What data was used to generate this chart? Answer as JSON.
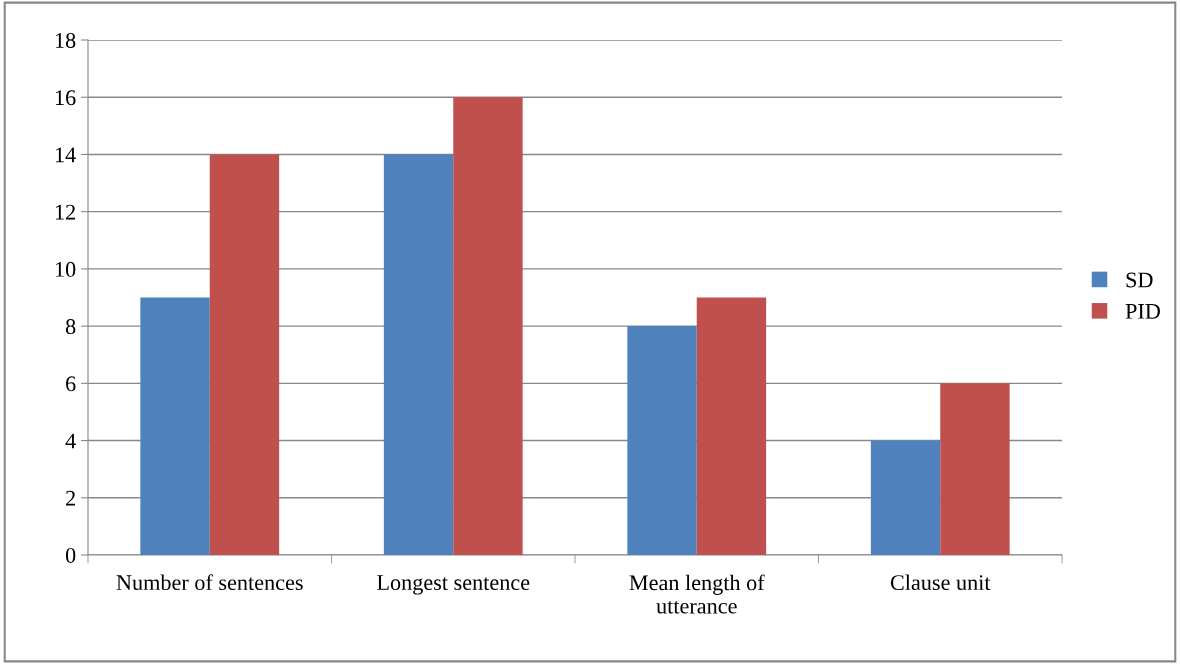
{
  "chart_data": {
    "type": "bar",
    "categories": [
      "Number of sentences",
      "Longest sentence",
      "Mean length of\nutterance",
      "Clause unit"
    ],
    "series": [
      {
        "name": "SD",
        "color": "#4f81bd",
        "values": [
          9,
          14,
          8,
          4
        ]
      },
      {
        "name": "PID",
        "color": "#c0504d",
        "values": [
          14,
          16,
          9,
          6
        ]
      }
    ],
    "ylim": [
      0,
      18
    ],
    "yticks": [
      0,
      2,
      4,
      6,
      8,
      10,
      12,
      14,
      16,
      18
    ],
    "grid": "y",
    "legend": "right"
  }
}
